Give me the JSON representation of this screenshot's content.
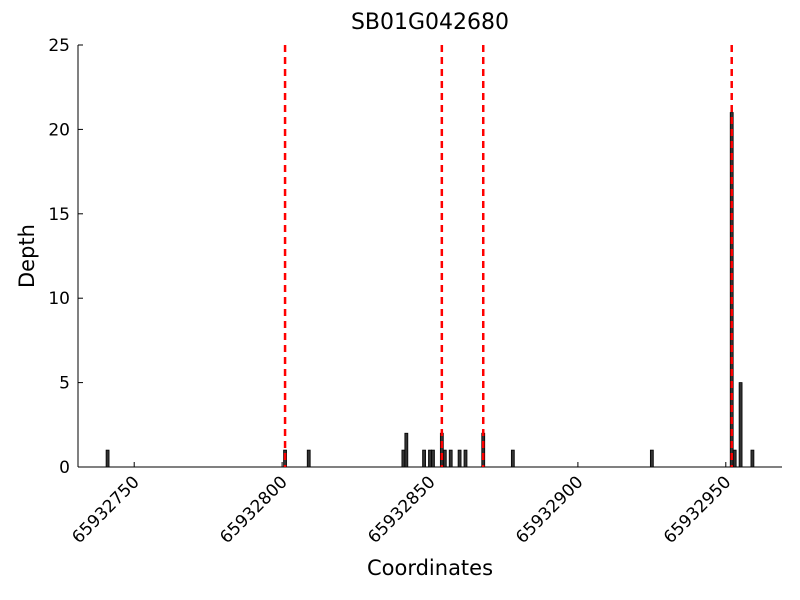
{
  "chart_data": {
    "type": "bar",
    "title": "SB01G042680",
    "x_label": "Coordinates",
    "y_label": "Depth",
    "x": [
      65932741,
      65932801,
      65932809,
      65932841,
      65932842,
      65932848,
      65932850,
      65932851,
      65932854,
      65932855,
      65932857,
      65932860,
      65932862,
      65932868,
      65932878,
      65932925,
      65932952,
      65932953,
      65932955,
      65932959
    ],
    "values": [
      1,
      1,
      1,
      1,
      2,
      1,
      1,
      1,
      2,
      1,
      1,
      1,
      1,
      2,
      1,
      1,
      21,
      1,
      5,
      1
    ],
    "color": "#333333",
    "vlines": [
      65932801,
      65932854,
      65932868,
      65932952
    ],
    "vline_color": "#ff0000",
    "xlim": [
      65932731,
      65932969
    ],
    "xticks": [
      65932750,
      65932800,
      65932850,
      65932900,
      65932950
    ],
    "ylim": [
      0,
      25
    ],
    "yticks": [
      0,
      5,
      10,
      15,
      20,
      25
    ]
  }
}
